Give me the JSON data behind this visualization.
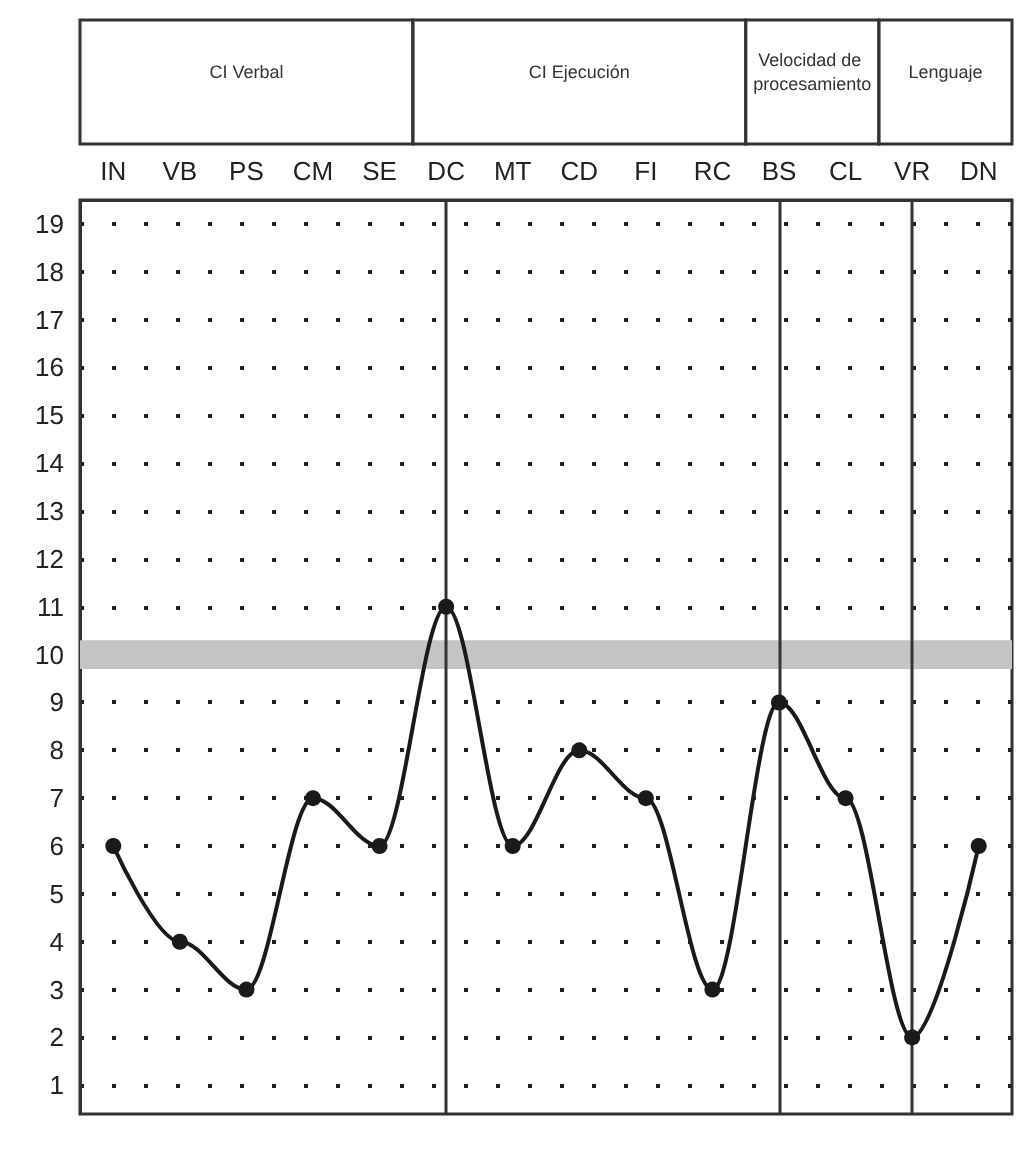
{
  "chart_data": {
    "type": "line",
    "categories": [
      "IN",
      "VB",
      "PS",
      "CM",
      "SE",
      "DC",
      "MT",
      "CD",
      "FI",
      "RC",
      "BS",
      "CL",
      "VR",
      "DN"
    ],
    "series": [
      {
        "color": "#1a1a1a",
        "values": [
          6,
          4,
          3,
          7,
          6,
          11,
          6,
          8,
          7,
          3,
          9,
          7,
          2,
          6
        ]
      }
    ],
    "ylim": [
      0.4,
      19.5
    ],
    "yticks": [
      1,
      2,
      3,
      4,
      5,
      6,
      7,
      8,
      9,
      10,
      11,
      12,
      13,
      14,
      15,
      16,
      17,
      18,
      19
    ],
    "grid": "y",
    "marker": "circle",
    "line_style": "solid",
    "bands": [
      {
        "axis": "y",
        "from": 9.7,
        "to": 10.3,
        "color": "#c4c4c4"
      }
    ],
    "ref_lines": [
      {
        "axis": "x",
        "value": "DC",
        "color": "#333333"
      },
      {
        "axis": "x",
        "value": "BS",
        "color": "#333333"
      },
      {
        "axis": "x",
        "value": "VR",
        "color": "#333333"
      }
    ],
    "annotations": [
      "CI Verbal",
      "CI Ejecución",
      "Velocidad de procesamiento",
      "Lenguaje"
    ]
  }
}
